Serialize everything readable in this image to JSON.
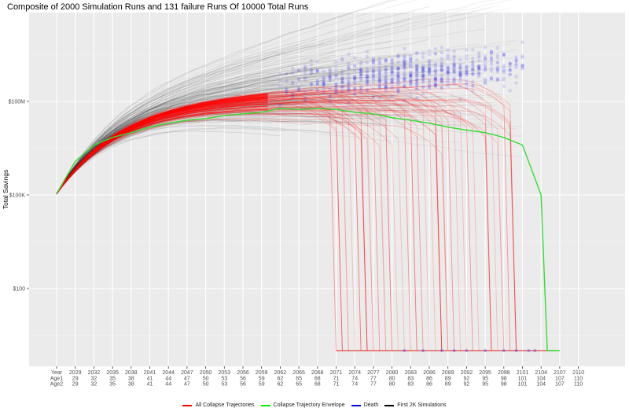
{
  "chart_data": {
    "type": "line",
    "title": "Composite of 2000 Simulation Runs and 131 failure Runs Of 10000 Total Runs",
    "xlabel": "",
    "ylabel": "Total Savings",
    "y_scale": "log10",
    "y_ticks": [
      {
        "label": "$100M",
        "value": 100000000
      },
      {
        "label": "$100K",
        "value": 100000
      },
      {
        "label": "$100",
        "value": 100
      }
    ],
    "x_tick_rows": {
      "row_labels": [
        "Year",
        "Age1",
        "Age2"
      ],
      "years": [
        2029,
        2032,
        2035,
        2038,
        2041,
        2044,
        2047,
        2050,
        2053,
        2056,
        2059,
        2062,
        2065,
        2068,
        2071,
        2074,
        2077,
        2080,
        2083,
        2086,
        2089,
        2092,
        2095,
        2098,
        2101,
        2104,
        2107,
        2110
      ],
      "age1": [
        29,
        32,
        35,
        38,
        41,
        44,
        47,
        50,
        53,
        56,
        59,
        62,
        65,
        68,
        71,
        74,
        77,
        80,
        83,
        86,
        89,
        92,
        95,
        98,
        101,
        104,
        107,
        110
      ],
      "age2": [
        29,
        32,
        35,
        38,
        41,
        44,
        47,
        50,
        53,
        56,
        59,
        62,
        65,
        68,
        71,
        74,
        77,
        80,
        83,
        86,
        89,
        92,
        95,
        98,
        101,
        104,
        107,
        110
      ]
    },
    "legend": [
      {
        "label": "All Collapse Trajectories",
        "color": "#ff0000"
      },
      {
        "label": "Collapse Trajectory Envelope",
        "color": "#00ee00"
      },
      {
        "label": "Death",
        "color": "#0000ff"
      },
      {
        "label": "First 2K Simulations",
        "color": "#000000"
      }
    ],
    "legend_position": "bottom",
    "grid": true,
    "series": [
      {
        "name": "Collapse Trajectory Envelope",
        "color": "#33dd33",
        "x": [
          2026,
          2029,
          2032,
          2035,
          2038,
          2041,
          2044,
          2047,
          2050,
          2053,
          2056,
          2059,
          2062,
          2065,
          2068,
          2071,
          2074,
          2077,
          2080,
          2083,
          2086,
          2089,
          2092,
          2095,
          2098,
          2101,
          2104,
          2105,
          2107
        ],
        "y": [
          110000,
          1200000,
          4000000,
          7000000,
          10000000,
          15000000,
          20000000,
          25000000,
          28000000,
          35000000,
          40000000,
          45000000,
          60000000,
          55000000,
          60000000,
          55000000,
          45000000,
          40000000,
          30000000,
          25000000,
          20000000,
          15000000,
          12000000,
          10000000,
          7000000,
          4000000,
          100000,
          0.5,
          0.5
        ]
      },
      {
        "name": "First 2K Simulations",
        "color": "#000000",
        "description": "median band of 2000 runs from $100K in 2026 rising to ~$100M by 2080s"
      },
      {
        "name": "All Collapse Trajectories",
        "color": "#ff0000",
        "description": "131 failing runs rising then collapsing to floor between 2070 and 2104"
      },
      {
        "name": "Death",
        "color": "#0000ff",
        "description": "scatter points at death year, concentrated 2062–2101 around $10M–$1B"
      }
    ],
    "ylim_approx": [
      0.3,
      10000000000
    ]
  }
}
